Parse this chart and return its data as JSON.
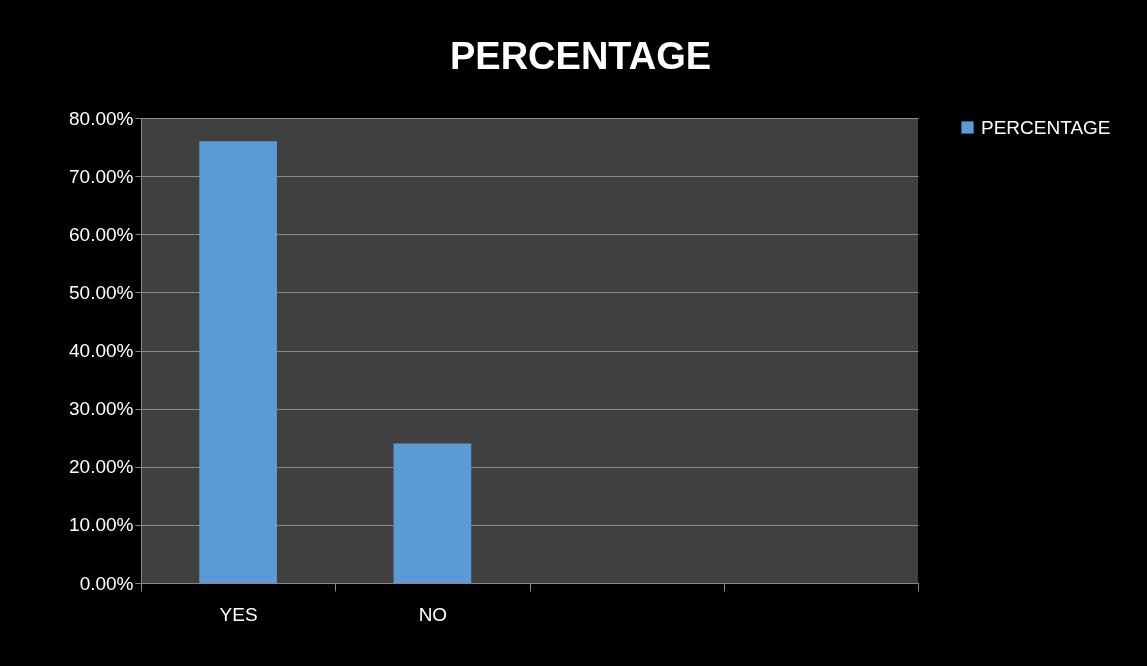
{
  "chart_data": {
    "type": "bar",
    "title": "PERCENTAGE",
    "categories": [
      "YES",
      "NO",
      null,
      null
    ],
    "series": [
      {
        "name": "PERCENTAGE",
        "color": "#5b9bd5",
        "values": [
          76,
          24,
          null,
          null
        ]
      }
    ],
    "ylim": [
      0,
      80
    ],
    "yticks": [
      {
        "value": 0,
        "label": "0.00%"
      },
      {
        "value": 10,
        "label": "10.00%"
      },
      {
        "value": 20,
        "label": "20.00%"
      },
      {
        "value": 30,
        "label": "30.00%"
      },
      {
        "value": 40,
        "label": "40.00%"
      },
      {
        "value": 50,
        "label": "50.00%"
      },
      {
        "value": 60,
        "label": "60.00%"
      },
      {
        "value": 70,
        "label": "70.00%"
      },
      {
        "value": 80,
        "label": "80.00%"
      }
    ],
    "grid": "y",
    "legend": "right"
  }
}
